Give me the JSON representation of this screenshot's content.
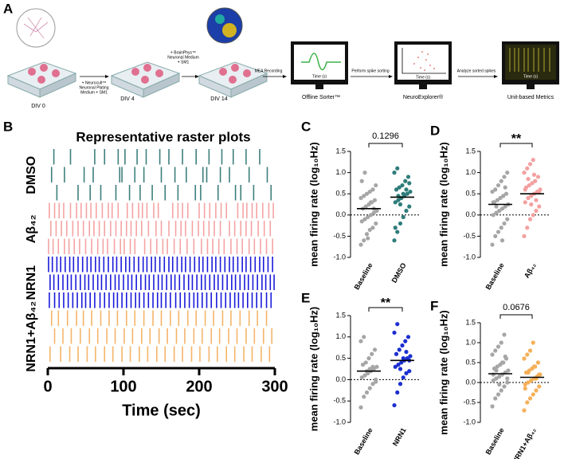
{
  "workflow": {
    "panel": "A",
    "stages": [
      "DIV 0",
      "DIV 4",
      "DIV 14"
    ],
    "media": [
      [
        "+ Neurocult™",
        "Neuronal Plating",
        "Medium + SM1"
      ],
      [
        "+ BrainPhys™",
        "Neuronal Medium",
        "+ SM1"
      ]
    ],
    "recording": "MEA Recording",
    "tools": [
      "Offline Sorter™",
      "NeuroExplorer®",
      "Unit-based Metrics"
    ],
    "actions": [
      "Perform spike sorting",
      "Analyze sorted spikes"
    ],
    "axis_label": "Time (s)"
  },
  "chart_data": [
    {
      "type": "raster",
      "panel": "B",
      "title": "Representative raster plots",
      "xlabel": "Time (sec)",
      "xlim": [
        0,
        300
      ],
      "xticks": [
        0,
        100,
        200,
        300
      ],
      "groups": [
        {
          "label": "DMSO",
          "color": "#3d7f7d",
          "rows": [
            [
              8,
              30,
              62,
              75,
              93,
              102,
              118,
              130,
              148,
              160,
              178,
              196,
              213,
              230,
              245,
              262,
              280
            ],
            [
              5,
              22,
              48,
              60,
              95,
              98,
              115,
              127,
              150,
              168,
              183,
              205,
              210,
              228,
              240,
              266,
              290
            ],
            [
              12,
              40,
              56,
              70,
              90,
              108,
              122,
              138,
              155,
              172,
              195,
              202,
              225,
              248,
              255,
              272,
              295
            ]
          ]
        },
        {
          "label": "Aβ₄₂",
          "color": "#f4a3a3",
          "rows": [
            [
              2,
              9,
              15,
              21,
              30,
              38,
              44,
              51,
              57,
              64,
              72,
              80,
              85,
              93,
              105,
              112,
              120,
              125,
              131,
              140,
              146,
              165,
              172,
              178,
              185,
              200,
              207,
              214,
              222,
              229,
              236,
              251,
              258,
              263,
              270,
              276,
              284,
              292,
              298
            ],
            [
              4,
              11,
              18,
              25,
              33,
              40,
              47,
              55,
              61,
              68,
              75,
              83,
              90,
              97,
              104,
              110,
              117,
              124,
              133,
              143,
              150,
              160,
              169,
              176,
              182,
              191,
              199,
              206,
              213,
              220,
              228,
              240,
              247,
              255,
              262,
              269,
              278,
              286,
              294
            ],
            [
              1,
              7,
              14,
              22,
              28,
              35,
              42,
              50,
              58,
              66,
              73,
              79,
              88,
              96,
              101,
              109,
              115,
              128,
              136,
              144,
              152,
              158,
              167,
              175,
              184,
              193,
              203,
              211,
              218,
              226,
              233,
              242,
              250,
              257,
              266,
              273,
              281,
              289,
              297
            ]
          ]
        },
        {
          "label": "NRN1",
          "color": "#1a1adb",
          "rows": [
            [
              1,
              6,
              12,
              17,
              23,
              29,
              34,
              40,
              46,
              52,
              57,
              63,
              68,
              74,
              80,
              86,
              91,
              97,
              103,
              108,
              114,
              120,
              126,
              131,
              137,
              142,
              148,
              154,
              160,
              165,
              171,
              177,
              182,
              188,
              194,
              200,
              205,
              211,
              217,
              222,
              228,
              234,
              240,
              245,
              251,
              257,
              262,
              268,
              274,
              280,
              285,
              291,
              297
            ],
            [
              3,
              8,
              14,
              20,
              26,
              31,
              37,
              43,
              49,
              54,
              60,
              66,
              71,
              77,
              83,
              89,
              94,
              100,
              106,
              111,
              117,
              123,
              129,
              134,
              140,
              146,
              151,
              157,
              163,
              168,
              174,
              180,
              186,
              191,
              197,
              203,
              208,
              214,
              220,
              225,
              231,
              237,
              243,
              248,
              254,
              260,
              265,
              271,
              277,
              283,
              288,
              294,
              299
            ],
            [
              2,
              9,
              15,
              21,
              27,
              33,
              39,
              45,
              50,
              56,
              62,
              69,
              75,
              81,
              87,
              92,
              98,
              104,
              110,
              116,
              121,
              127,
              133,
              139,
              145,
              150,
              156,
              162,
              169,
              175,
              181,
              187,
              193,
              198,
              204,
              210,
              216,
              223,
              229,
              235,
              241,
              247,
              252,
              258,
              264,
              270,
              276,
              282,
              289,
              295
            ]
          ]
        },
        {
          "label": "NRN1+Aβ₄₂",
          "color": "#f5b469",
          "rows": [
            [
              5,
              14,
              26,
              38,
              47,
              58,
              70,
              81,
              92,
              104,
              115,
              127,
              139,
              150,
              162,
              173,
              185,
              196,
              208,
              219,
              231,
              242,
              254,
              266,
              277,
              289
            ],
            [
              9,
              20,
              31,
              43,
              55,
              66,
              78,
              89,
              101,
              112,
              124,
              135,
              147,
              158,
              170,
              181,
              193,
              204,
              216,
              227,
              239,
              250,
              262,
              273,
              285,
              296
            ],
            [
              3,
              17,
              29,
              40,
              52,
              63,
              75,
              86,
              98,
              109,
              121,
              132,
              144,
              155,
              167,
              178,
              190,
              201,
              213,
              224,
              236,
              247,
              259,
              270,
              282,
              293
            ]
          ]
        }
      ]
    },
    {
      "type": "dot",
      "panel": "C",
      "ylabel": "mean firing rate (log₁₀Hz)",
      "categories": [
        "Baseline",
        "DMSO"
      ],
      "ylim": [
        -1.0,
        1.5
      ],
      "yticks": [
        {
          "value": -1,
          "label": "-1.0"
        },
        -0.5,
        {
          "value": 0,
          "label": "0.0"
        },
        0.5,
        {
          "value": 1,
          "label": "1.0"
        },
        1.5
      ],
      "reference_line": 0,
      "annotation": "0.1296",
      "groups": [
        {
          "color": "#a6a6a6",
          "mean": 0.15,
          "values": [
            -0.7,
            -0.6,
            -0.45,
            -0.35,
            -0.3,
            -0.2,
            -0.15,
            -0.1,
            -0.05,
            0.0,
            0.05,
            0.1,
            0.15,
            0.2,
            0.25,
            0.3,
            0.35,
            0.4,
            0.45,
            0.5,
            0.55,
            0.6,
            0.7,
            0.8,
            1.0,
            -0.55,
            0.3,
            0.15
          ]
        },
        {
          "color": "#2e7d7b",
          "mean": 0.42,
          "values": [
            -0.6,
            -0.4,
            -0.2,
            -0.05,
            0.1,
            0.2,
            0.3,
            0.35,
            0.4,
            0.45,
            0.5,
            0.55,
            0.6,
            0.65,
            0.7,
            0.8,
            0.9,
            1.0,
            1.1,
            0.25,
            0.5,
            0.6,
            0.75,
            -0.3,
            0.45
          ]
        }
      ]
    },
    {
      "type": "dot",
      "panel": "D",
      "ylabel": "mean firing rate (log₁₀Hz)",
      "categories": [
        "Baseline",
        "Aβ₄₂"
      ],
      "ylim": [
        -1.0,
        1.5
      ],
      "yticks": [
        {
          "value": -1,
          "label": "-1.0"
        },
        -0.5,
        {
          "value": 0,
          "label": "0.0"
        },
        0.5,
        {
          "value": 1,
          "label": "1.0"
        },
        1.5
      ],
      "reference_line": 0,
      "annotation": "**",
      "groups": [
        {
          "color": "#a6a6a6",
          "mean": 0.25,
          "values": [
            -0.7,
            -0.5,
            -0.4,
            -0.3,
            -0.2,
            -0.1,
            0.0,
            0.05,
            0.1,
            0.15,
            0.2,
            0.25,
            0.3,
            0.35,
            0.4,
            0.45,
            0.5,
            0.55,
            0.6,
            0.7,
            0.8,
            0.9,
            1.0,
            0.3,
            0.2,
            0.1,
            -0.6,
            0.65
          ]
        },
        {
          "color": "#f4a0a0",
          "mean": 0.5,
          "values": [
            -0.5,
            -0.3,
            -0.1,
            0.0,
            0.1,
            0.2,
            0.3,
            0.4,
            0.45,
            0.5,
            0.55,
            0.6,
            0.65,
            0.7,
            0.75,
            0.8,
            0.9,
            1.0,
            1.1,
            1.2,
            1.3,
            0.35,
            0.55,
            0.6,
            0.85,
            0.25,
            0.95
          ]
        }
      ]
    },
    {
      "type": "dot",
      "panel": "E",
      "ylabel": "mean firing rate (log₁₀Hz)",
      "categories": [
        "Baseline",
        "NRN1"
      ],
      "ylim": [
        -1.0,
        1.5
      ],
      "yticks": [
        {
          "value": -1,
          "label": "-1.0"
        },
        -0.5,
        {
          "value": 0,
          "label": "0.0"
        },
        0.5,
        {
          "value": 1,
          "label": "1.0"
        },
        1.5
      ],
      "reference_line": 0,
      "annotation": "**",
      "groups": [
        {
          "color": "#a6a6a6",
          "mean": 0.2,
          "values": [
            -0.65,
            -0.4,
            -0.3,
            -0.2,
            -0.1,
            0.0,
            0.05,
            0.1,
            0.15,
            0.2,
            0.25,
            0.3,
            0.35,
            0.4,
            0.5,
            0.6,
            0.7,
            0.9,
            1.0,
            0.2,
            0.25,
            0.3,
            -0.05
          ]
        },
        {
          "color": "#1c2fd0",
          "mean": 0.45,
          "values": [
            -0.6,
            -0.3,
            -0.1,
            0.05,
            0.15,
            0.2,
            0.3,
            0.35,
            0.4,
            0.45,
            0.5,
            0.55,
            0.6,
            0.7,
            0.8,
            0.9,
            1.0,
            1.1,
            1.3,
            0.25,
            0.5,
            0.65,
            0.45
          ]
        }
      ]
    },
    {
      "type": "dot",
      "panel": "F",
      "ylabel": "mean firing rate (log₁₀Hz)",
      "categories": [
        "Baseline",
        "NRN1+Aβ₄₂"
      ],
      "ylim": [
        -1.0,
        1.5
      ],
      "yticks": [
        {
          "value": -1,
          "label": "-1.0"
        },
        -0.5,
        {
          "value": 0,
          "label": "0.0"
        },
        0.5,
        {
          "value": 1,
          "label": "1.0"
        },
        1.5
      ],
      "reference_line": 0,
      "annotation": "0.0676",
      "groups": [
        {
          "color": "#a6a6a6",
          "mean": 0.22,
          "values": [
            -0.6,
            -0.4,
            -0.3,
            -0.2,
            -0.1,
            0.0,
            0.05,
            0.1,
            0.15,
            0.2,
            0.25,
            0.3,
            0.35,
            0.4,
            0.45,
            0.5,
            0.6,
            0.7,
            0.8,
            0.9,
            1.0,
            1.2,
            0.1,
            0.2,
            0.3,
            -0.05,
            0.5,
            0.65
          ]
        },
        {
          "color": "#f5b05a",
          "mean": 0.13,
          "values": [
            -0.7,
            -0.5,
            -0.4,
            -0.3,
            -0.2,
            -0.1,
            -0.05,
            0.0,
            0.05,
            0.1,
            0.15,
            0.2,
            0.25,
            0.3,
            0.35,
            0.4,
            0.5,
            0.6,
            0.7,
            0.8,
            1.0,
            0.1,
            0.2,
            -0.15,
            0.25,
            0.05,
            0.4
          ]
        }
      ]
    }
  ]
}
